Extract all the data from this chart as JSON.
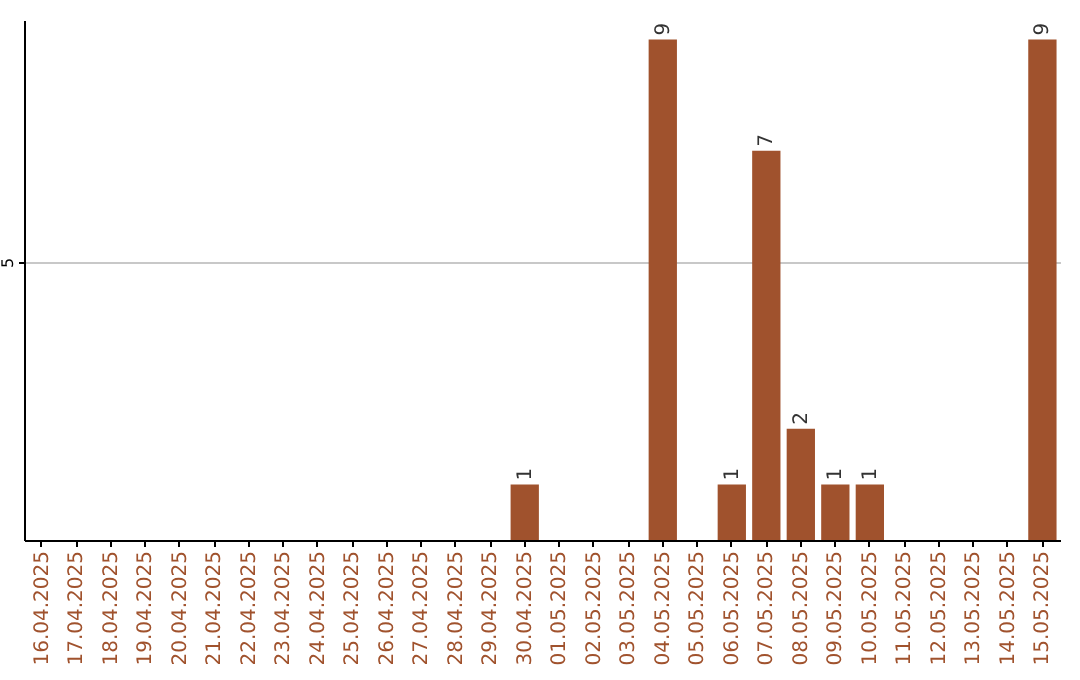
{
  "chart_data": {
    "type": "bar",
    "categories": [
      "16.04.2025",
      "17.04.2025",
      "18.04.2025",
      "19.04.2025",
      "20.04.2025",
      "21.04.2025",
      "22.04.2025",
      "23.04.2025",
      "24.04.2025",
      "25.04.2025",
      "26.04.2025",
      "27.04.2025",
      "28.04.2025",
      "29.04.2025",
      "30.04.2025",
      "01.05.2025",
      "02.05.2025",
      "03.05.2025",
      "04.05.2025",
      "05.05.2025",
      "06.05.2025",
      "07.05.2025",
      "08.05.2025",
      "09.05.2025",
      "10.05.2025",
      "11.05.2025",
      "12.05.2025",
      "13.05.2025",
      "14.05.2025",
      "15.05.2025"
    ],
    "values": [
      null,
      null,
      null,
      null,
      null,
      null,
      null,
      null,
      null,
      null,
      null,
      null,
      null,
      null,
      1,
      null,
      null,
      null,
      9,
      null,
      1,
      7,
      2,
      1,
      1,
      null,
      null,
      null,
      null,
      9
    ],
    "color": "#a0522d",
    "ylim": [
      0,
      9.35
    ],
    "yticks": [
      5
    ],
    "grid": "y",
    "data_labels": true
  }
}
